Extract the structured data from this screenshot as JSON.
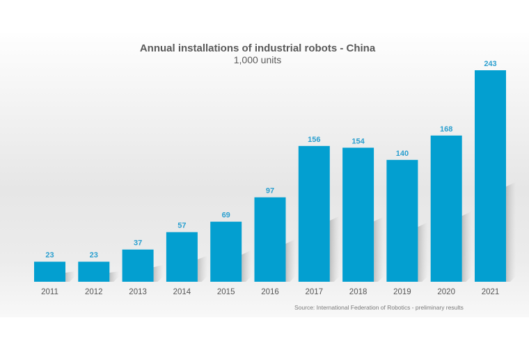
{
  "chart_data": {
    "type": "bar",
    "title": "Annual installations of industrial robots - China",
    "subtitle": "1,000 units",
    "xlabel": "",
    "ylabel": "",
    "categories": [
      "2011",
      "2012",
      "2013",
      "2014",
      "2015",
      "2016",
      "2017",
      "2018",
      "2019",
      "2020",
      "2021"
    ],
    "values": [
      23,
      23,
      37,
      57,
      69,
      97,
      156,
      154,
      140,
      168,
      243
    ],
    "data_labels": [
      "23",
      "23",
      "37",
      "57",
      "69",
      "97",
      "156",
      "154",
      "140",
      "168",
      "243"
    ],
    "ylim": [
      0,
      243
    ],
    "grid": false,
    "legend": "none",
    "bar_color": "#039fd0",
    "label_color": "#2a9fcf",
    "source": "Source: International Federation of Robotics - preliminary results"
  }
}
